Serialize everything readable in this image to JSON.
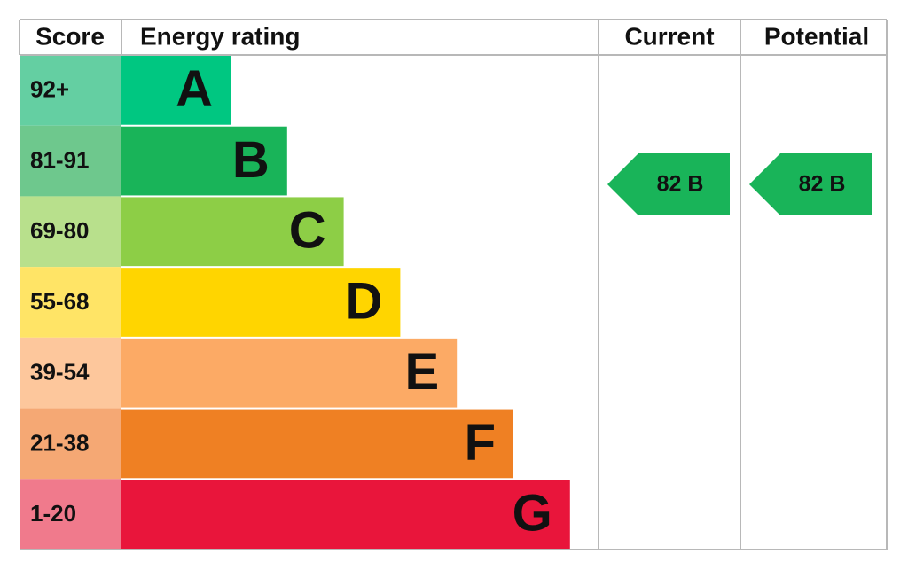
{
  "header": {
    "score": "Score",
    "rating": "Energy rating",
    "current": "Current",
    "potential": "Potential"
  },
  "rows": [
    {
      "score": "92+",
      "letter": "A",
      "color": "#00c781",
      "score_color": "#64cfa2"
    },
    {
      "score": "81-91",
      "letter": "B",
      "color": "#19b459",
      "score_color": "#6ec88d"
    },
    {
      "score": "69-80",
      "letter": "C",
      "color": "#8dce46",
      "score_color": "#b8e08c"
    },
    {
      "score": "55-68",
      "letter": "D",
      "color": "#ffd500",
      "score_color": "#ffe466"
    },
    {
      "score": "39-54",
      "letter": "E",
      "color": "#fcaa65",
      "score_color": "#fdc79c"
    },
    {
      "score": "21-38",
      "letter": "F",
      "color": "#ef8023",
      "score_color": "#f5a874"
    },
    {
      "score": "1-20",
      "letter": "G",
      "color": "#e9153b",
      "score_color": "#f07a8c"
    }
  ],
  "current": {
    "label": "82 B",
    "color": "#19b459"
  },
  "potential": {
    "label": "82 B",
    "color": "#19b459"
  }
}
